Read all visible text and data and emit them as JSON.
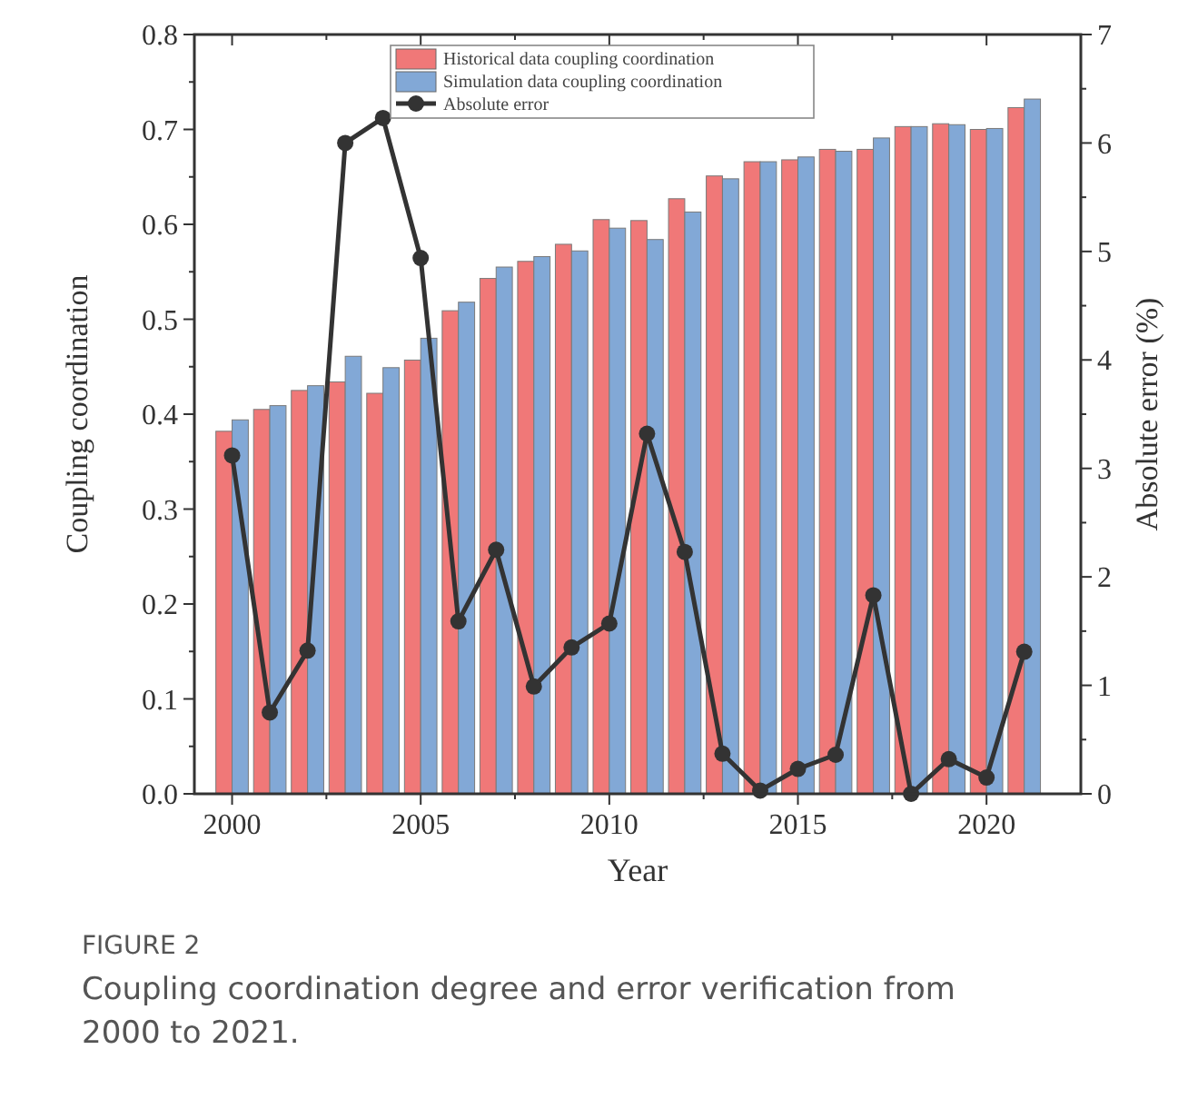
{
  "chart_data": {
    "type": "bar",
    "xlabel": "Year",
    "ylabel": "Coupling coordination",
    "y2label": "Absolute error (%)",
    "x": [
      2000,
      2001,
      2002,
      2003,
      2004,
      2005,
      2006,
      2007,
      2008,
      2009,
      2010,
      2011,
      2012,
      2013,
      2014,
      2015,
      2016,
      2017,
      2018,
      2019,
      2020,
      2021
    ],
    "series": [
      {
        "name": "Historical data coupling coordination",
        "color": "#f07878",
        "values": [
          0.382,
          0.405,
          0.425,
          0.434,
          0.422,
          0.457,
          0.509,
          0.543,
          0.561,
          0.579,
          0.605,
          0.604,
          0.627,
          0.651,
          0.666,
          0.668,
          0.679,
          0.679,
          0.703,
          0.706,
          0.7,
          0.723
        ]
      },
      {
        "name": "Simulation data coupling coordination",
        "color": "#82a8d6",
        "values": [
          0.394,
          0.409,
          0.43,
          0.461,
          0.449,
          0.48,
          0.518,
          0.555,
          0.566,
          0.572,
          0.596,
          0.584,
          0.613,
          0.648,
          0.666,
          0.671,
          0.677,
          0.691,
          0.703,
          0.705,
          0.701,
          0.732
        ]
      },
      {
        "name": "Absolute error",
        "type": "line",
        "axis": "y2",
        "color": "#333333",
        "values": [
          3.12,
          0.75,
          1.32,
          6.0,
          6.23,
          4.94,
          1.59,
          2.25,
          0.99,
          1.35,
          1.57,
          3.32,
          2.23,
          0.37,
          0.03,
          0.23,
          0.36,
          1.83,
          0,
          0.32,
          0.15,
          1.31
        ]
      }
    ],
    "xlim": [
      1999,
      2022.5
    ],
    "xticks": [
      2000,
      {
        "value": 2002.5,
        "label": null
      },
      2005,
      {
        "value": 2007.5,
        "label": null
      },
      2010,
      {
        "value": 2012.5,
        "label": null
      },
      2015,
      {
        "value": 2017.5,
        "label": null
      },
      2020
    ],
    "ylim": [
      0,
      0.8
    ],
    "yticks": [
      {
        "value": 0,
        "label": "0.0"
      },
      {
        "value": 0.05,
        "label": null
      },
      {
        "value": 0.1,
        "label": "0.1"
      },
      {
        "value": 0.15,
        "label": null
      },
      {
        "value": 0.2,
        "label": "0.2"
      },
      {
        "value": 0.25,
        "label": null
      },
      {
        "value": 0.3,
        "label": "0.3"
      },
      {
        "value": 0.35,
        "label": null
      },
      {
        "value": 0.4,
        "label": "0.4"
      },
      {
        "value": 0.45,
        "label": null
      },
      {
        "value": 0.5,
        "label": "0.5"
      },
      {
        "value": 0.55,
        "label": null
      },
      {
        "value": 0.6,
        "label": "0.6"
      },
      {
        "value": 0.65,
        "label": null
      },
      {
        "value": 0.7,
        "label": "0.7"
      },
      {
        "value": 0.75,
        "label": null
      },
      {
        "value": 0.8,
        "label": "0.8"
      }
    ],
    "y2lim": [
      0,
      7
    ],
    "y2ticks": [
      0,
      {
        "value": 0.5,
        "label": null
      },
      1,
      {
        "value": 1.5,
        "label": null
      },
      2,
      {
        "value": 2.5,
        "label": null
      },
      3,
      {
        "value": 3.5,
        "label": null
      },
      4,
      {
        "value": 4.5,
        "label": null
      },
      5,
      {
        "value": 5.5,
        "label": null
      },
      6,
      {
        "value": 6.5,
        "label": null
      },
      7
    ],
    "grid": false,
    "legend": "top",
    "marker": "circle",
    "line_style": "solid",
    "annotations": [
      "FIGURE 2",
      "Coupling coordination degree and error verification from 2000 to 2021."
    ]
  }
}
